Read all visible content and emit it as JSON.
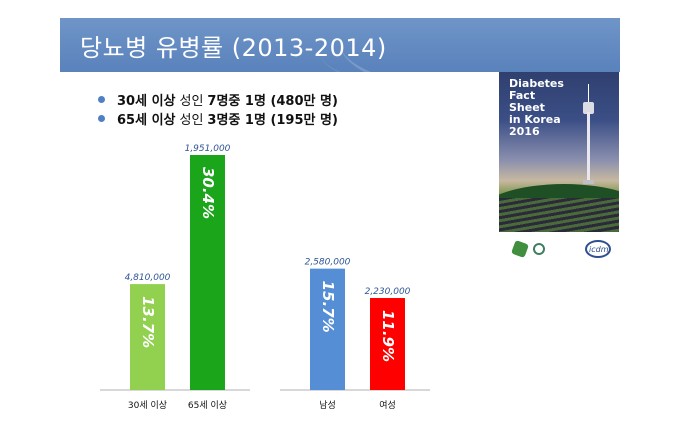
{
  "slide": {
    "title": "당뇨병 유병률 (2013-2014)",
    "bullets": [
      {
        "a": "30세 이상",
        "b": "성인",
        "c": "7명중 1명 (480만 명)"
      },
      {
        "a": "65세 이상",
        "b": "성인",
        "c": "3명중 1명 (195만 명)"
      }
    ],
    "cover": {
      "lines": [
        "Diabetes",
        "Fact",
        "Sheet",
        "in Korea",
        "2016"
      ],
      "logo_text": "icdm"
    }
  },
  "chart_data": {
    "type": "bar",
    "categories": [
      "30세 이상",
      "65세 이상",
      "남성",
      "여성"
    ],
    "values": [
      13.7,
      30.4,
      15.7,
      11.9
    ],
    "bar_labels": [
      "13.7%",
      "30.4%",
      "15.7%",
      "11.9%"
    ],
    "value_labels": [
      "4,810,000",
      "1,951,000",
      "2,580,000",
      "2,230,000"
    ],
    "colors": [
      "#92d050",
      "#1aa51a",
      "#558ed5",
      "#ff0000"
    ],
    "groups": [
      [
        0,
        1
      ],
      [
        2,
        3
      ]
    ],
    "ylim": [
      0,
      32
    ]
  }
}
